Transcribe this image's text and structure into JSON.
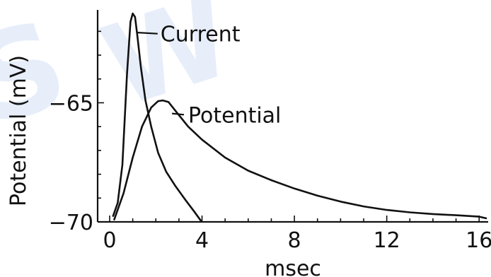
{
  "chart_data": {
    "type": "line",
    "xlabel": "msec",
    "ylabel": "Potential (mV)",
    "xlim": [
      0,
      16.3
    ],
    "ylim": [
      -70,
      -61.1
    ],
    "x_ticks": [
      0,
      4,
      8,
      12,
      16
    ],
    "y_ticks": [
      -65,
      -70
    ],
    "grid": false,
    "series": [
      {
        "name": "Current",
        "x": [
          0.15,
          0.35,
          0.55,
          0.75,
          0.9,
          1.0,
          1.1,
          1.2,
          1.35,
          1.55,
          1.8,
          2.1,
          2.45,
          2.85,
          3.3,
          3.65,
          3.95
        ],
        "y": [
          -69.75,
          -69.2,
          -67.6,
          -63.8,
          -61.6,
          -61.25,
          -61.4,
          -62.2,
          -63.5,
          -64.9,
          -66.0,
          -67.1,
          -67.9,
          -68.5,
          -69.1,
          -69.55,
          -69.95
        ]
      },
      {
        "name": "Potential",
        "x": [
          0.2,
          0.6,
          1.0,
          1.4,
          1.8,
          2.1,
          2.3,
          2.55,
          2.9,
          3.4,
          4.0,
          5.0,
          6.0,
          7.0,
          8.0,
          9.0,
          10.0,
          11.0,
          12.0,
          13.0,
          14.0,
          15.0,
          16.0,
          16.3
        ],
        "y": [
          -69.9,
          -68.8,
          -67.3,
          -66.0,
          -65.2,
          -64.93,
          -64.9,
          -64.97,
          -65.4,
          -66.0,
          -66.55,
          -67.3,
          -67.85,
          -68.25,
          -68.6,
          -68.9,
          -69.15,
          -69.35,
          -69.5,
          -69.6,
          -69.67,
          -69.72,
          -69.78,
          -69.85
        ]
      }
    ],
    "annotations": [
      {
        "text": "Current",
        "x": 2.2,
        "y": -62.1
      },
      {
        "text": "Potential",
        "x": 3.4,
        "y": -65.5
      }
    ]
  }
}
